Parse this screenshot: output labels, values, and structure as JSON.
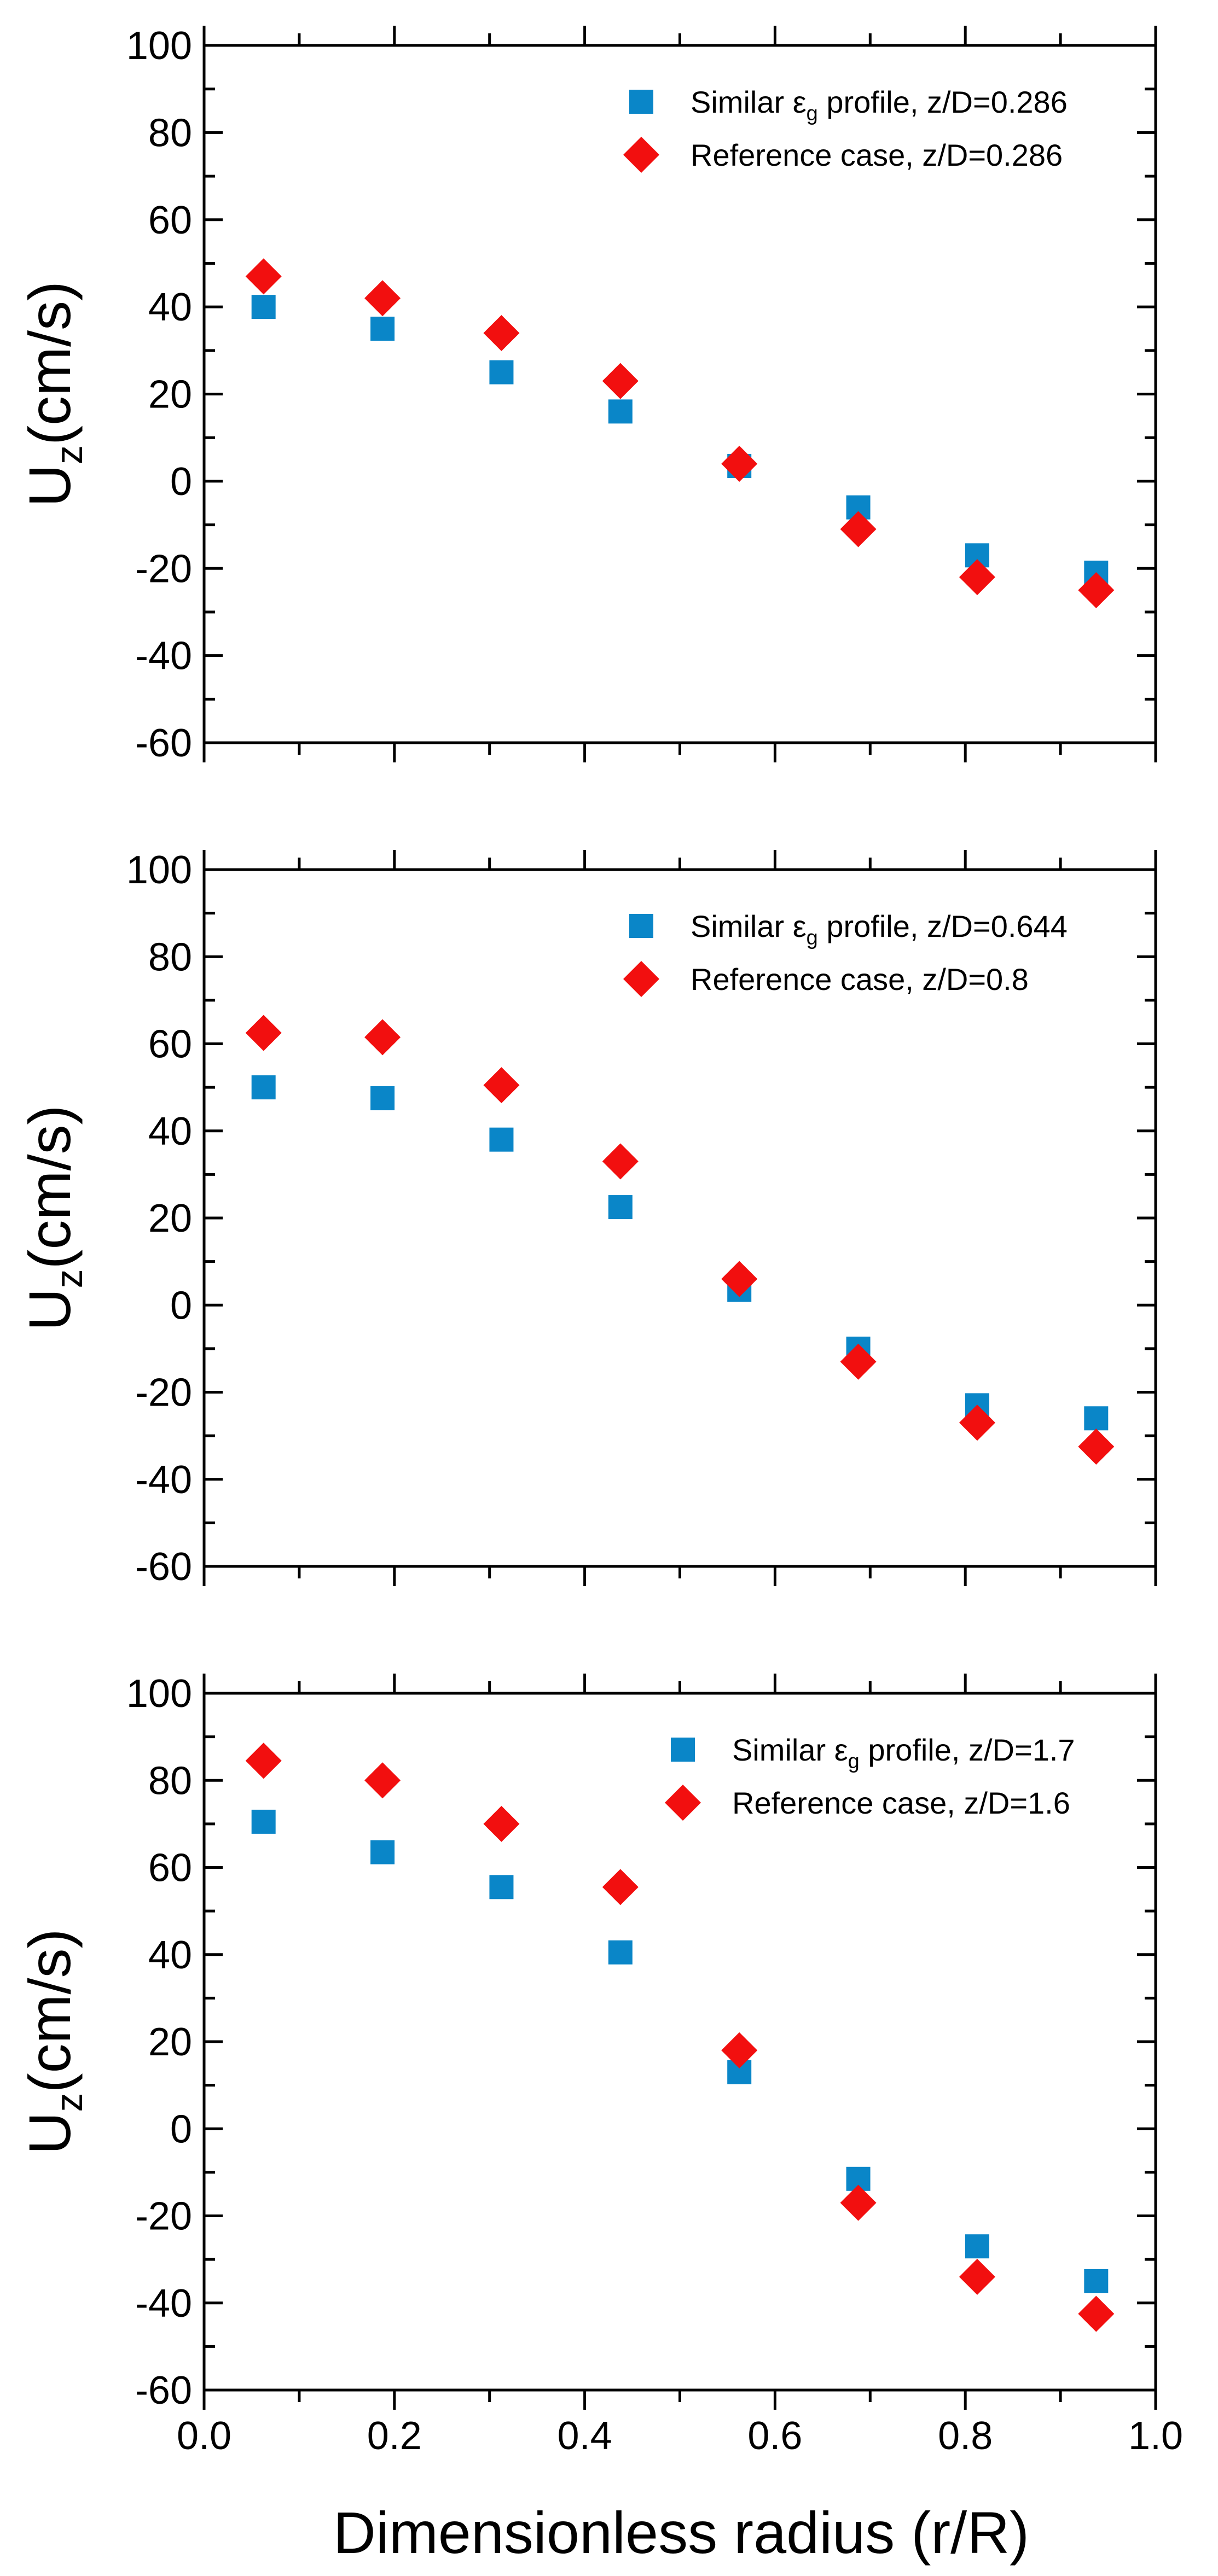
{
  "colors": {
    "series_square": "#0a86c8",
    "series_diamond": "#f20f0f",
    "axis": "#000000",
    "background": "#ffffff"
  },
  "xlabel": "Dimensionless radius (r/R)",
  "chart_data": [
    {
      "type": "scatter",
      "ylabel_main": "U",
      "ylabel_sub": "z",
      "ylabel_rest": "(cm/s)",
      "xlim": [
        0.0,
        1.0
      ],
      "ylim": [
        -60,
        100
      ],
      "yticks": [
        "100",
        "80",
        "60",
        "40",
        "20",
        "0",
        "-20",
        "-40",
        "-60"
      ],
      "xticks": [],
      "x": [
        0.0625,
        0.1875,
        0.3125,
        0.4375,
        0.5625,
        0.6875,
        0.8125,
        0.9375
      ],
      "series": [
        {
          "name": "Similar εg profile, z/D=0.286",
          "legend_pre": "Similar ",
          "legend_sym": "ε",
          "legend_sub": "g",
          "legend_post": " profile, z/D=0.286",
          "marker": "square",
          "values": [
            40,
            35,
            25,
            16,
            3.5,
            -6,
            -17,
            -21
          ]
        },
        {
          "name": "Reference case, z/D=0.286",
          "legend_pre": "Reference case, z/D=0.286",
          "legend_sym": "",
          "legend_sub": "",
          "legend_post": "",
          "marker": "diamond",
          "values": [
            47,
            42,
            34,
            23,
            4,
            -11,
            -22,
            -25
          ]
        }
      ]
    },
    {
      "type": "scatter",
      "ylabel_main": "U",
      "ylabel_sub": "z",
      "ylabel_rest": "(cm/s)",
      "xlim": [
        0.0,
        1.0
      ],
      "ylim": [
        -60,
        100
      ],
      "yticks": [
        "100",
        "80",
        "60",
        "40",
        "20",
        "0",
        "-20",
        "-40",
        "-60"
      ],
      "xticks": [],
      "x": [
        0.0625,
        0.1875,
        0.3125,
        0.4375,
        0.5625,
        0.6875,
        0.8125,
        0.9375
      ],
      "series": [
        {
          "name": "Similar εg profile, z/D=0.644",
          "legend_pre": "Similar ",
          "legend_sym": "ε",
          "legend_sub": "g",
          "legend_post": " profile, z/D=0.644",
          "marker": "square",
          "values": [
            50,
            47.5,
            38,
            22.5,
            3.5,
            -10,
            -23,
            -26
          ]
        },
        {
          "name": "Reference case, z/D=0.8",
          "legend_pre": "Reference case, z/D=0.8",
          "legend_sym": "",
          "legend_sub": "",
          "legend_post": "",
          "marker": "diamond",
          "values": [
            62.5,
            61.5,
            50.5,
            33,
            6,
            -13,
            -27,
            -32.5
          ]
        }
      ]
    },
    {
      "type": "scatter",
      "ylabel_main": "U",
      "ylabel_sub": "z",
      "ylabel_rest": "(cm/s)",
      "xlim": [
        0.0,
        1.0
      ],
      "ylim": [
        -60,
        100
      ],
      "yticks": [
        "100",
        "80",
        "60",
        "40",
        "20",
        "0",
        "-20",
        "-40",
        "-60"
      ],
      "xticks": [
        "0.0",
        "0.2",
        "0.4",
        "0.6",
        "0.8",
        "1.0"
      ],
      "x": [
        0.0625,
        0.1875,
        0.3125,
        0.4375,
        0.5625,
        0.6875,
        0.8125,
        0.9375
      ],
      "series": [
        {
          "name": "Similar εg profile, z/D=1.7",
          "legend_pre": "Similar ",
          "legend_sym": "ε",
          "legend_sub": "g",
          "legend_post": " profile, z/D=1.7",
          "marker": "square",
          "values": [
            70.5,
            63.5,
            55.5,
            40.5,
            13,
            -11.5,
            -27,
            -35
          ]
        },
        {
          "name": "Reference case, z/D=1.6",
          "legend_pre": "Reference case, z/D=1.6",
          "legend_sym": "",
          "legend_sub": "",
          "legend_post": "",
          "marker": "diamond",
          "values": [
            84.5,
            80,
            70,
            55.5,
            18,
            -17,
            -34,
            -42.5
          ]
        }
      ]
    }
  ]
}
